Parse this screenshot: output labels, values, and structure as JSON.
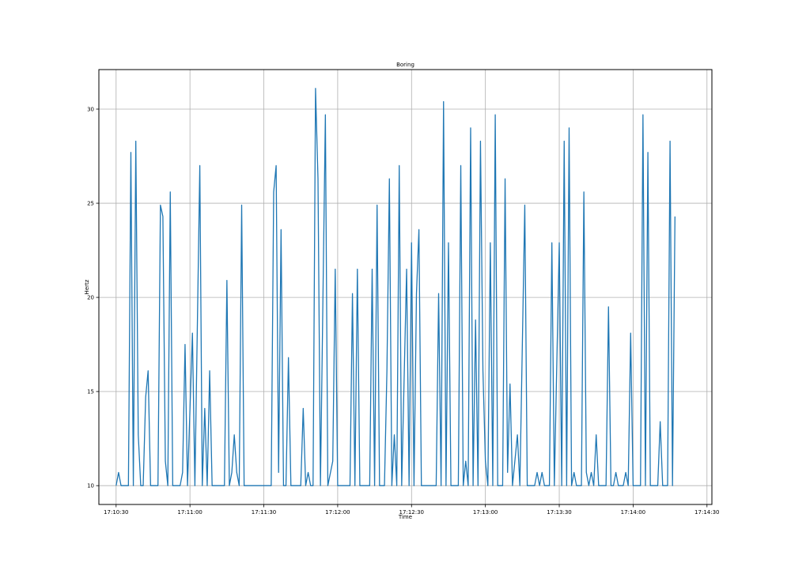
{
  "chart_data": {
    "type": "line",
    "title": "Boring",
    "xlabel": "Time",
    "ylabel": "Hertz",
    "x_ticks": [
      "17:10:30",
      "17:11:00",
      "17:11:30",
      "17:12:00",
      "17:12:30",
      "17:13:00",
      "17:13:30",
      "17:14:00",
      "17:14:30"
    ],
    "y_ticks": [
      10,
      15,
      20,
      25,
      30
    ],
    "xlim": [
      "17:10:23",
      "17:14:32"
    ],
    "ylim": [
      9.0,
      32.1
    ],
    "grid": true,
    "series": [
      {
        "color": "#1f77b4",
        "points": [
          [
            "17:10:30",
            10
          ],
          [
            "17:10:31",
            10.7
          ],
          [
            "17:10:32",
            10
          ],
          [
            "17:10:35",
            10
          ],
          [
            "17:10:36",
            27.7
          ],
          [
            "17:10:37",
            10
          ],
          [
            "17:10:38",
            28.3
          ],
          [
            "17:10:39",
            12.7
          ],
          [
            "17:10:40",
            10
          ],
          [
            "17:10:41",
            10
          ],
          [
            "17:10:42",
            14.7
          ],
          [
            "17:10:43",
            16.1
          ],
          [
            "17:10:44",
            10
          ],
          [
            "17:10:47",
            10
          ],
          [
            "17:10:48",
            24.9
          ],
          [
            "17:10:49",
            24.3
          ],
          [
            "17:10:50",
            11.3
          ],
          [
            "17:10:51",
            10
          ],
          [
            "17:10:52",
            25.6
          ],
          [
            "17:10:53",
            10
          ],
          [
            "17:10:56",
            10
          ],
          [
            "17:10:57",
            10.7
          ],
          [
            "17:10:58",
            17.5
          ],
          [
            "17:10:59",
            10
          ],
          [
            "17:11:01",
            18.1
          ],
          [
            "17:11:02",
            10
          ],
          [
            "17:11:04",
            27.0
          ],
          [
            "17:11:05",
            10
          ],
          [
            "17:11:06",
            14.1
          ],
          [
            "17:11:07",
            10
          ],
          [
            "17:11:08",
            16.1
          ],
          [
            "17:11:09",
            10
          ],
          [
            "17:11:14",
            10
          ],
          [
            "17:11:15",
            20.9
          ],
          [
            "17:11:16",
            10
          ],
          [
            "17:11:17",
            10.7
          ],
          [
            "17:11:18",
            12.7
          ],
          [
            "17:11:19",
            10.7
          ],
          [
            "17:11:20",
            10
          ],
          [
            "17:11:21",
            24.9
          ],
          [
            "17:11:22",
            10
          ],
          [
            "17:11:33",
            10
          ],
          [
            "17:11:34",
            25.6
          ],
          [
            "17:11:35",
            27.0
          ],
          [
            "17:11:36",
            10.7
          ],
          [
            "17:11:37",
            23.6
          ],
          [
            "17:11:38",
            10
          ],
          [
            "17:11:39",
            10
          ],
          [
            "17:11:40",
            16.8
          ],
          [
            "17:11:41",
            10
          ],
          [
            "17:11:45",
            10
          ],
          [
            "17:11:46",
            14.1
          ],
          [
            "17:11:47",
            10
          ],
          [
            "17:11:48",
            10.7
          ],
          [
            "17:11:49",
            10
          ],
          [
            "17:11:50",
            10
          ],
          [
            "17:11:51",
            31.1
          ],
          [
            "17:11:52",
            26.3
          ],
          [
            "17:11:53",
            10
          ],
          [
            "17:11:55",
            29.7
          ],
          [
            "17:11:56",
            10
          ],
          [
            "17:11:58",
            11.3
          ],
          [
            "17:11:59",
            21.5
          ],
          [
            "17:12:00",
            10
          ],
          [
            "17:12:05",
            10
          ],
          [
            "17:12:06",
            20.2
          ],
          [
            "17:12:07",
            10
          ],
          [
            "17:12:08",
            21.5
          ],
          [
            "17:12:09",
            10
          ],
          [
            "17:12:13",
            10
          ],
          [
            "17:12:14",
            21.5
          ],
          [
            "17:12:15",
            10
          ],
          [
            "17:12:16",
            24.9
          ],
          [
            "17:12:17",
            10
          ],
          [
            "17:12:19",
            10
          ],
          [
            "17:12:20",
            16.1
          ],
          [
            "17:12:21",
            26.3
          ],
          [
            "17:12:22",
            10
          ],
          [
            "17:12:23",
            12.7
          ],
          [
            "17:12:24",
            10
          ],
          [
            "17:12:25",
            27.0
          ],
          [
            "17:12:26",
            10
          ],
          [
            "17:12:28",
            21.5
          ],
          [
            "17:12:29",
            10
          ],
          [
            "17:12:30",
            22.9
          ],
          [
            "17:12:31",
            10
          ],
          [
            "17:12:32",
            20.2
          ],
          [
            "17:12:33",
            23.6
          ],
          [
            "17:12:34",
            10
          ],
          [
            "17:12:40",
            10
          ],
          [
            "17:12:41",
            20.2
          ],
          [
            "17:12:42",
            10
          ],
          [
            "17:12:43",
            30.4
          ],
          [
            "17:12:44",
            10
          ],
          [
            "17:12:45",
            22.9
          ],
          [
            "17:12:46",
            10
          ],
          [
            "17:12:49",
            10
          ],
          [
            "17:12:50",
            27.0
          ],
          [
            "17:12:51",
            10
          ],
          [
            "17:12:52",
            11.3
          ],
          [
            "17:12:53",
            10
          ],
          [
            "17:12:54",
            29.0
          ],
          [
            "17:12:55",
            10
          ],
          [
            "17:12:56",
            18.8
          ],
          [
            "17:12:57",
            10
          ],
          [
            "17:12:58",
            28.3
          ],
          [
            "17:12:59",
            16.1
          ],
          [
            "17:13:00",
            11.3
          ],
          [
            "17:13:01",
            10
          ],
          [
            "17:13:02",
            22.9
          ],
          [
            "17:13:03",
            10
          ],
          [
            "17:13:04",
            29.7
          ],
          [
            "17:13:05",
            10
          ],
          [
            "17:13:07",
            10
          ],
          [
            "17:13:08",
            26.3
          ],
          [
            "17:13:09",
            10.7
          ],
          [
            "17:13:10",
            15.4
          ],
          [
            "17:13:11",
            10
          ],
          [
            "17:13:13",
            12.7
          ],
          [
            "17:13:14",
            10
          ],
          [
            "17:13:16",
            24.9
          ],
          [
            "17:13:17",
            10
          ],
          [
            "17:13:20",
            10
          ],
          [
            "17:13:21",
            10.7
          ],
          [
            "17:13:22",
            10
          ],
          [
            "17:13:23",
            10.7
          ],
          [
            "17:13:24",
            10
          ],
          [
            "17:13:26",
            10
          ],
          [
            "17:13:27",
            22.9
          ],
          [
            "17:13:28",
            10
          ],
          [
            "17:13:30",
            22.9
          ],
          [
            "17:13:31",
            10
          ],
          [
            "17:13:32",
            28.3
          ],
          [
            "17:13:33",
            10
          ],
          [
            "17:13:34",
            29.0
          ],
          [
            "17:13:35",
            10
          ],
          [
            "17:13:36",
            10.7
          ],
          [
            "17:13:37",
            10
          ],
          [
            "17:13:39",
            10
          ],
          [
            "17:13:40",
            25.6
          ],
          [
            "17:13:41",
            10.7
          ],
          [
            "17:13:42",
            10
          ],
          [
            "17:13:43",
            10.7
          ],
          [
            "17:13:44",
            10
          ],
          [
            "17:13:45",
            12.7
          ],
          [
            "17:13:46",
            10
          ],
          [
            "17:13:49",
            10
          ],
          [
            "17:13:50",
            19.5
          ],
          [
            "17:13:51",
            10
          ],
          [
            "17:13:52",
            10
          ],
          [
            "17:13:53",
            10.7
          ],
          [
            "17:13:54",
            10
          ],
          [
            "17:13:56",
            10
          ],
          [
            "17:13:57",
            10.7
          ],
          [
            "17:13:58",
            10
          ],
          [
            "17:13:59",
            18.1
          ],
          [
            "17:14:00",
            10
          ],
          [
            "17:14:03",
            10
          ],
          [
            "17:14:04",
            29.7
          ],
          [
            "17:14:05",
            10
          ],
          [
            "17:14:06",
            27.7
          ],
          [
            "17:14:07",
            10
          ],
          [
            "17:14:10",
            10
          ],
          [
            "17:14:11",
            13.4
          ],
          [
            "17:14:12",
            10
          ],
          [
            "17:14:14",
            10
          ],
          [
            "17:14:15",
            28.3
          ],
          [
            "17:14:16",
            10
          ],
          [
            "17:14:17",
            24.3
          ]
        ]
      }
    ]
  }
}
